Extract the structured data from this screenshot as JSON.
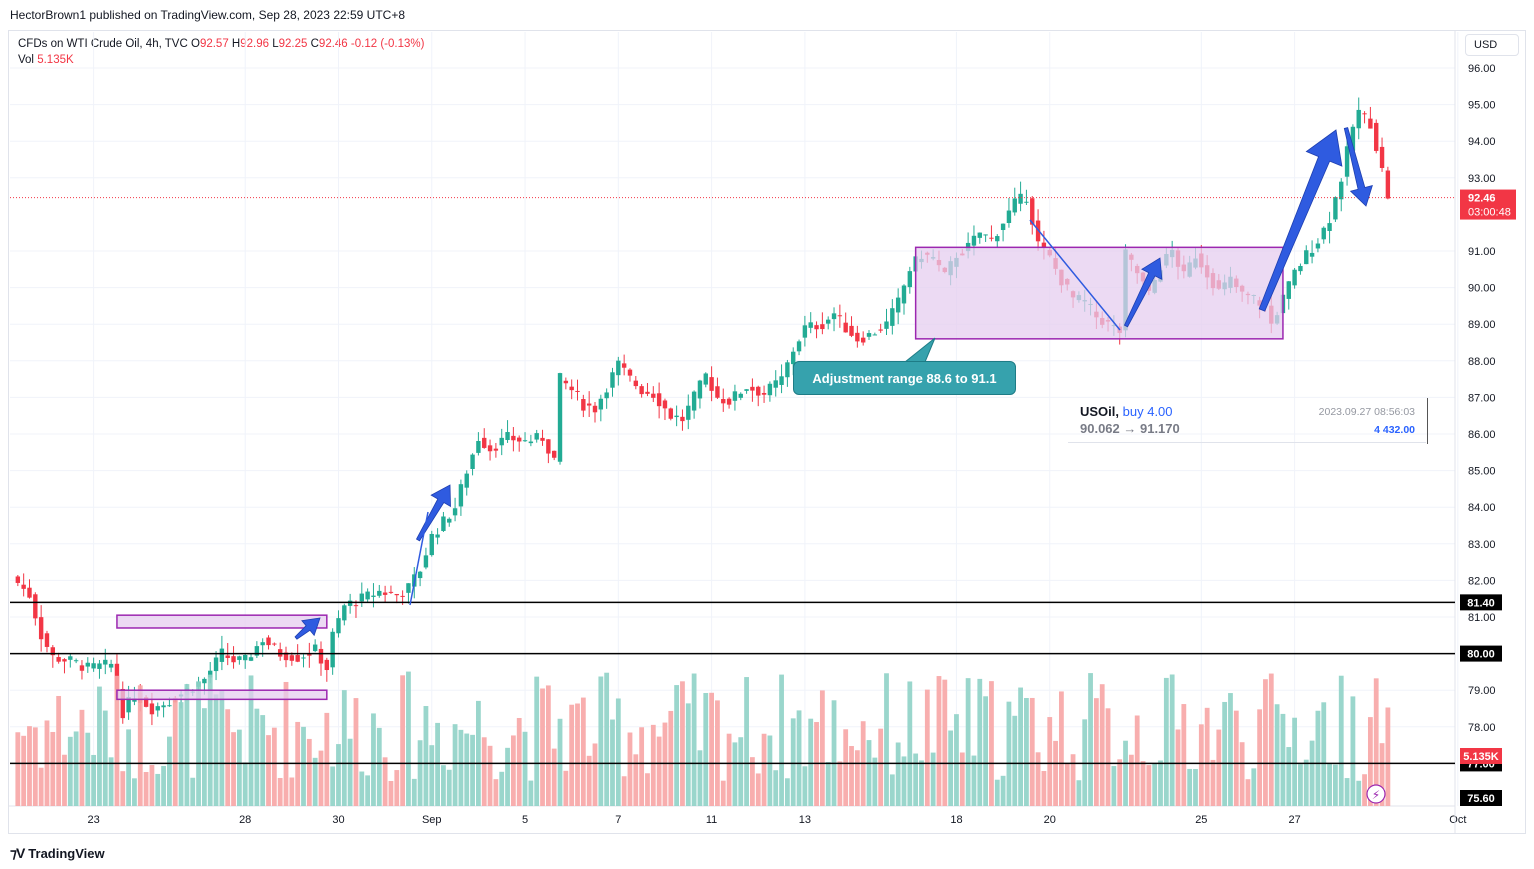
{
  "header": {
    "publisher_line": "HectorBrown1 published on TradingView.com, Sep 28, 2023 22:59 UTC+8"
  },
  "legend": {
    "symbol": "CFDs on WTI Crude Oil, 4h, TVC",
    "o_label": "O",
    "o_value": "92.57",
    "h_label": "H",
    "h_value": "92.96",
    "l_label": "L",
    "l_value": "92.25",
    "c_label": "C",
    "c_value": "92.46",
    "change": "-0.12 (-0.13%)",
    "vol_label": "Vol",
    "vol_value": "5.135K"
  },
  "currency_button": "USD",
  "annotation_text": "Adjustment range 88.6 to 91.1",
  "trade_box": {
    "symbol": "USOil,",
    "action": "buy 4.00",
    "prices": "90.062 → 91.170",
    "datetime": "2023.09.27 08:56:03",
    "profit": "4 432.00"
  },
  "price_labels": {
    "last": "92.46",
    "countdown": "03:00:48",
    "vol_last": "5.135K"
  },
  "footer": {
    "brand": "TradingView"
  },
  "colors": {
    "up": "#22ab94",
    "down": "#f23645",
    "vol_up": "#8fd1c6",
    "vol_down": "#f7a5a5",
    "box_fill": "#e6cdef",
    "box_stroke": "#9c27b0",
    "arrow": "#2f5be0",
    "hline": "#000000"
  },
  "chart_data": {
    "type": "candlestick",
    "ylim": [
      75.6,
      96.4
    ],
    "y_ticks": [
      "96.00",
      "95.00",
      "94.00",
      "93.00",
      "91.00",
      "90.00",
      "89.00",
      "88.00",
      "87.00",
      "86.00",
      "85.00",
      "84.00",
      "83.00",
      "82.00",
      "81.00",
      "79.00",
      "78.00"
    ],
    "x_ticks": [
      {
        "label": "23",
        "i": 14
      },
      {
        "label": "28",
        "i": 40
      },
      {
        "label": "30",
        "i": 56
      },
      {
        "label": "Sep",
        "i": 72
      },
      {
        "label": "5",
        "i": 88
      },
      {
        "label": "7",
        "i": 104
      },
      {
        "label": "11",
        "i": 120
      },
      {
        "label": "13",
        "i": 136
      },
      {
        "label": "18",
        "i": 162
      },
      {
        "label": "20",
        "i": 178
      },
      {
        "label": "25",
        "i": 204
      },
      {
        "label": "27",
        "i": 220
      },
      {
        "label": "Oct",
        "i": 248
      }
    ],
    "horizontal_lines": [
      {
        "price": 81.4,
        "label": "81.40"
      },
      {
        "price": 80.0,
        "label": "80.00"
      },
      {
        "price": 77.0,
        "label": "77.00"
      }
    ],
    "bottom_label": "75.60",
    "ranges": [
      {
        "from_i": 18,
        "to_i": 54,
        "top": 81.05,
        "bottom": 80.7
      },
      {
        "from_i": 18,
        "to_i": 54,
        "top": 79.0,
        "bottom": 78.75
      },
      {
        "from_i": 155,
        "to_i": 218,
        "top": 91.1,
        "bottom": 88.6
      }
    ],
    "candle_anchors": [
      [
        0,
        82.1
      ],
      [
        3,
        81.6
      ],
      [
        5,
        80.5
      ],
      [
        7,
        79.9
      ],
      [
        10,
        79.8
      ],
      [
        13,
        79.6
      ],
      [
        17,
        79.7
      ],
      [
        19,
        78.4
      ],
      [
        21,
        78.9
      ],
      [
        24,
        78.5
      ],
      [
        27,
        78.7
      ],
      [
        30,
        79.0
      ],
      [
        33,
        79.3
      ],
      [
        36,
        80.0
      ],
      [
        38,
        79.8
      ],
      [
        40,
        79.8
      ],
      [
        43,
        80.4
      ],
      [
        46,
        80.0
      ],
      [
        49,
        79.9
      ],
      [
        52,
        80.1
      ],
      [
        54,
        79.6
      ],
      [
        55,
        80.5
      ],
      [
        57,
        81.3
      ],
      [
        60,
        81.5
      ],
      [
        63,
        81.7
      ],
      [
        66,
        81.6
      ],
      [
        68,
        81.8
      ],
      [
        70,
        82.3
      ],
      [
        72,
        83.2
      ],
      [
        74,
        83.6
      ],
      [
        76,
        84.0
      ],
      [
        78,
        85.0
      ],
      [
        80,
        85.9
      ],
      [
        82,
        85.6
      ],
      [
        85,
        85.9
      ],
      [
        88,
        85.8
      ],
      [
        91,
        85.9
      ],
      [
        93,
        85.3
      ],
      [
        94,
        87.5
      ],
      [
        96,
        87.2
      ],
      [
        98,
        86.8
      ],
      [
        100,
        86.7
      ],
      [
        102,
        87.3
      ],
      [
        104,
        87.9
      ],
      [
        106,
        87.5
      ],
      [
        108,
        87.2
      ],
      [
        110,
        87.1
      ],
      [
        113,
        86.5
      ],
      [
        115,
        86.4
      ],
      [
        117,
        87.0
      ],
      [
        119,
        87.6
      ],
      [
        121,
        87.0
      ],
      [
        123,
        86.9
      ],
      [
        126,
        87.3
      ],
      [
        129,
        87.1
      ],
      [
        132,
        87.5
      ],
      [
        134,
        88.3
      ],
      [
        136,
        88.9
      ],
      [
        139,
        89.0
      ],
      [
        141,
        89.3
      ],
      [
        143,
        88.9
      ],
      [
        145,
        88.6
      ],
      [
        147,
        88.7
      ],
      [
        150,
        89.0
      ],
      [
        152,
        89.6
      ],
      [
        154,
        90.5
      ],
      [
        156,
        90.9
      ],
      [
        158,
        90.8
      ],
      [
        160,
        90.3
      ],
      [
        162,
        90.9
      ],
      [
        164,
        91.1
      ],
      [
        166,
        91.5
      ],
      [
        168,
        91.3
      ],
      [
        170,
        91.8
      ],
      [
        172,
        92.3
      ],
      [
        174,
        92.5
      ],
      [
        176,
        91.2
      ],
      [
        178,
        90.8
      ],
      [
        180,
        90.2
      ],
      [
        182,
        89.7
      ],
      [
        184,
        89.6
      ],
      [
        186,
        89.2
      ],
      [
        188,
        89.0
      ],
      [
        190,
        88.8
      ],
      [
        191,
        90.9
      ],
      [
        193,
        90.4
      ],
      [
        195,
        89.8
      ],
      [
        197,
        90.6
      ],
      [
        199,
        91.0
      ],
      [
        201,
        90.3
      ],
      [
        203,
        90.9
      ],
      [
        205,
        90.4
      ],
      [
        207,
        89.9
      ],
      [
        209,
        90.2
      ],
      [
        211,
        89.8
      ],
      [
        213,
        89.7
      ],
      [
        215,
        89.5
      ],
      [
        216,
        89.0
      ],
      [
        218,
        89.7
      ],
      [
        220,
        90.4
      ],
      [
        222,
        90.9
      ],
      [
        224,
        91.3
      ],
      [
        226,
        91.9
      ],
      [
        228,
        93.0
      ],
      [
        230,
        94.4
      ],
      [
        231,
        94.8
      ],
      [
        233,
        94.5
      ],
      [
        235,
        93.2
      ],
      [
        236,
        92.5
      ]
    ],
    "volume_note": "volume bars in thousands, scaled under price panel"
  }
}
